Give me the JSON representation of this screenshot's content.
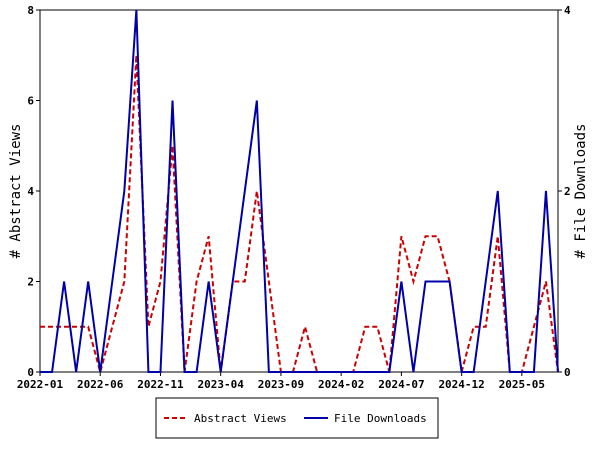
{
  "chart_data": {
    "type": "line",
    "x": [
      "2022-01",
      "2022-02",
      "2022-03",
      "2022-04",
      "2022-05",
      "2022-06",
      "2022-07",
      "2022-08",
      "2022-09",
      "2022-10",
      "2022-11",
      "2022-12",
      "2023-01",
      "2023-02",
      "2023-03",
      "2023-04",
      "2023-05",
      "2023-06",
      "2023-07",
      "2023-08",
      "2023-09",
      "2023-10",
      "2023-11",
      "2023-12",
      "2024-01",
      "2024-02",
      "2024-03",
      "2024-04",
      "2024-05",
      "2024-06",
      "2024-07",
      "2024-08",
      "2024-09",
      "2024-10",
      "2024-11",
      "2024-12",
      "2025-01",
      "2025-02",
      "2025-03",
      "2025-04",
      "2025-05",
      "2025-06",
      "2025-07",
      "2025-08"
    ],
    "xticks": [
      "2022-01",
      "2022-06",
      "2022-11",
      "2023-04",
      "2023-09",
      "2024-02",
      "2024-07",
      "2024-12",
      "2025-05"
    ],
    "ylabel": "# Abstract Views",
    "y2label": "# File Downloads",
    "ylim": [
      0,
      8
    ],
    "yticks": [
      0,
      2,
      4,
      6,
      8
    ],
    "y2lim": [
      0,
      4
    ],
    "y2ticks": [
      0,
      2,
      4
    ],
    "series": [
      {
        "name": "Abstract Views",
        "color": "#cc0000",
        "dashed": true,
        "values": [
          1,
          1,
          1,
          1,
          1,
          0,
          1,
          2,
          7,
          1,
          2,
          5,
          0,
          2,
          3,
          0,
          2,
          2,
          4,
          2,
          0,
          0,
          1,
          0,
          0,
          0,
          0,
          1,
          1,
          0,
          3,
          2,
          3,
          3,
          2,
          0,
          1,
          1,
          3,
          0,
          0,
          1,
          2,
          0
        ]
      },
      {
        "name": "File Downloads",
        "color": "#0000aa",
        "axis": "y2",
        "values": [
          0,
          0,
          1,
          0,
          1,
          0,
          1,
          2,
          4,
          0,
          0,
          3,
          0,
          0,
          1,
          0,
          1,
          2,
          3,
          0,
          0,
          0,
          0,
          0,
          0,
          0,
          0,
          0,
          0,
          0,
          1,
          0,
          1,
          1,
          1,
          0,
          0,
          1,
          2,
          0,
          0,
          0,
          2,
          0
        ]
      }
    ]
  }
}
